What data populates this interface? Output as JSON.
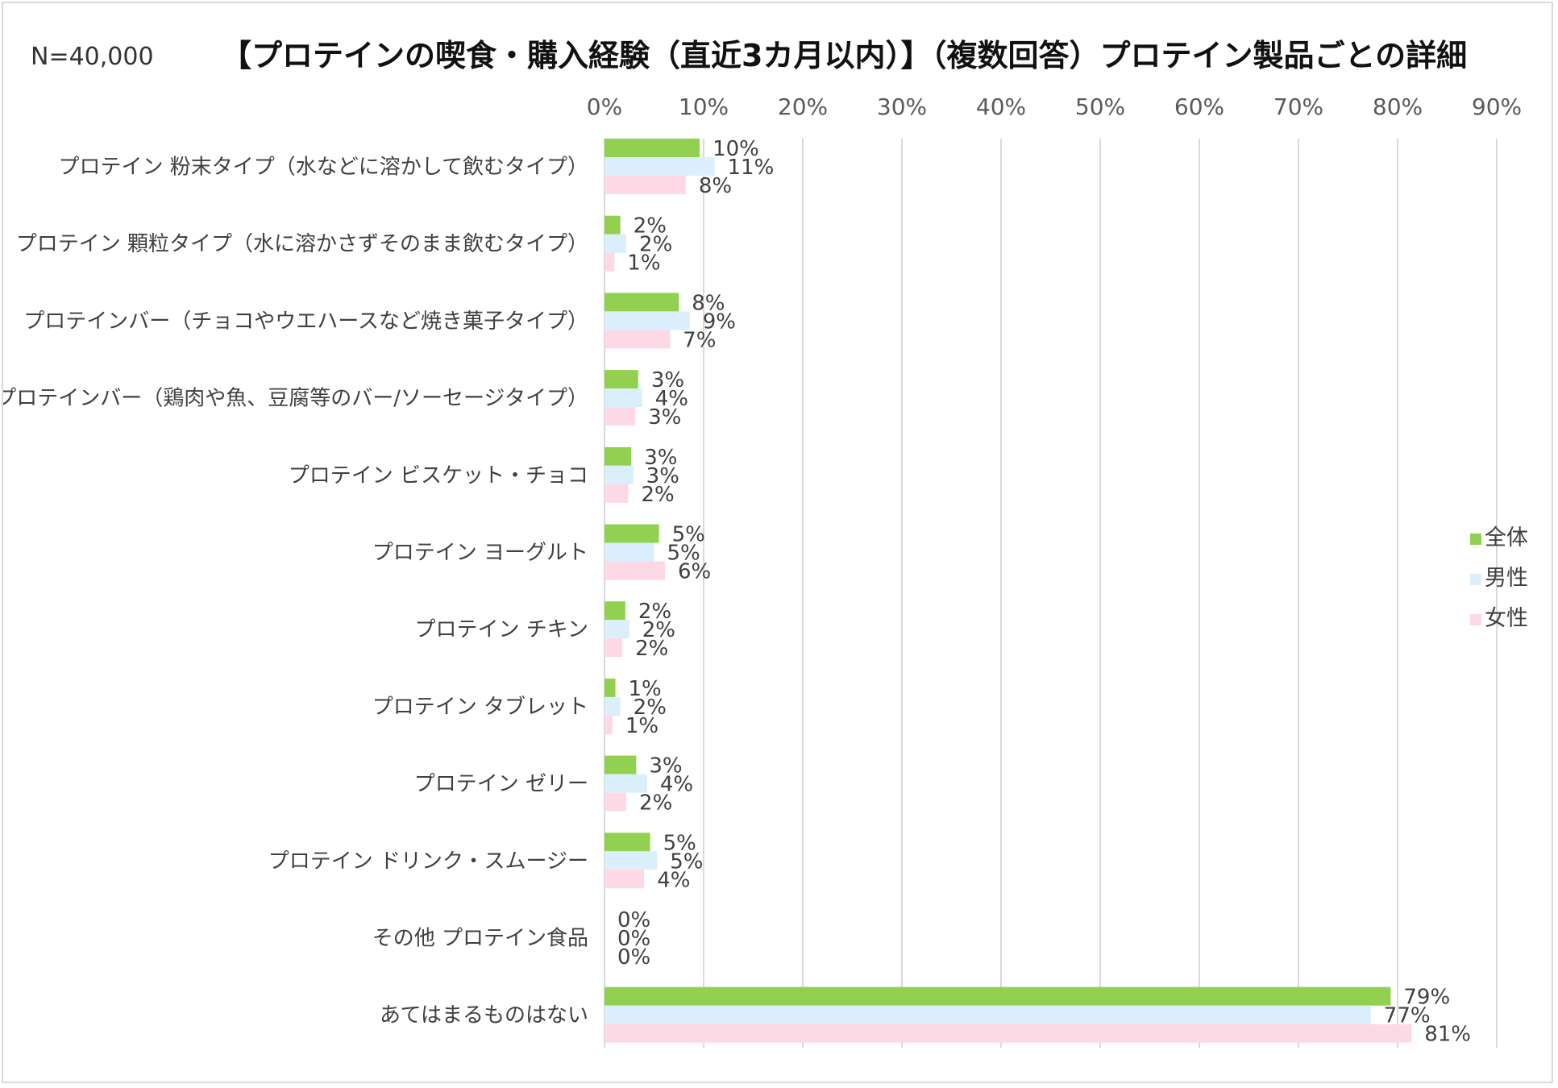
{
  "sample_size": "N=40,000",
  "chart_data": {
    "type": "bar",
    "orientation": "horizontal",
    "title": "【プロテインの喫食・購入経験（直近3カ月以内）】（複数回答）プロテイン製品ごとの詳細",
    "xlim": [
      0,
      90
    ],
    "x_ticks": [
      "0%",
      "10%",
      "20%",
      "30%",
      "40%",
      "50%",
      "60%",
      "70%",
      "80%",
      "90%"
    ],
    "grid": true,
    "legend_position": "right",
    "categories": [
      "プロテイン 粉末タイプ（水などに溶かして飲むタイプ）",
      "プロテイン 顆粒タイプ（水に溶かさずそのまま飲むタイプ）",
      "プロテインバー（チョコやウエハースなど焼き菓子タイプ）",
      "プロテインバー（鶏肉や魚、豆腐等のバー/ソーセージタイプ）",
      "プロテイン ビスケット・チョコ",
      "プロテイン ヨーグルト",
      "プロテイン チキン",
      "プロテイン タブレット",
      "プロテイン ゼリー",
      "プロテイン ドリンク・スムージー",
      "その他 プロテイン食品",
      "あてはまるものはない"
    ],
    "series": [
      {
        "name": "全体",
        "color": "#92d050",
        "values": [
          9.6,
          1.6,
          7.5,
          3.4,
          2.7,
          5.5,
          2.1,
          1.1,
          3.2,
          4.6,
          0,
          79.3
        ],
        "labels": [
          "10%",
          "2%",
          "8%",
          "3%",
          "3%",
          "5%",
          "2%",
          "1%",
          "3%",
          "5%",
          "0%",
          "79%"
        ]
      },
      {
        "name": "男性",
        "color": "#dbeefb",
        "values": [
          11.1,
          2.2,
          8.6,
          3.8,
          2.9,
          5.0,
          2.5,
          1.6,
          4.3,
          5.3,
          0,
          77.3
        ],
        "labels": [
          "11%",
          "2%",
          "9%",
          "4%",
          "3%",
          "5%",
          "2%",
          "2%",
          "4%",
          "5%",
          "0%",
          "77%"
        ]
      },
      {
        "name": "女性",
        "color": "#fdd9e5",
        "values": [
          8.2,
          1.0,
          6.6,
          3.1,
          2.4,
          6.1,
          1.8,
          0.8,
          2.2,
          4.0,
          0,
          81.4
        ],
        "labels": [
          "8%",
          "1%",
          "7%",
          "3%",
          "2%",
          "6%",
          "2%",
          "1%",
          "2%",
          "4%",
          "0%",
          "81%"
        ]
      }
    ]
  }
}
